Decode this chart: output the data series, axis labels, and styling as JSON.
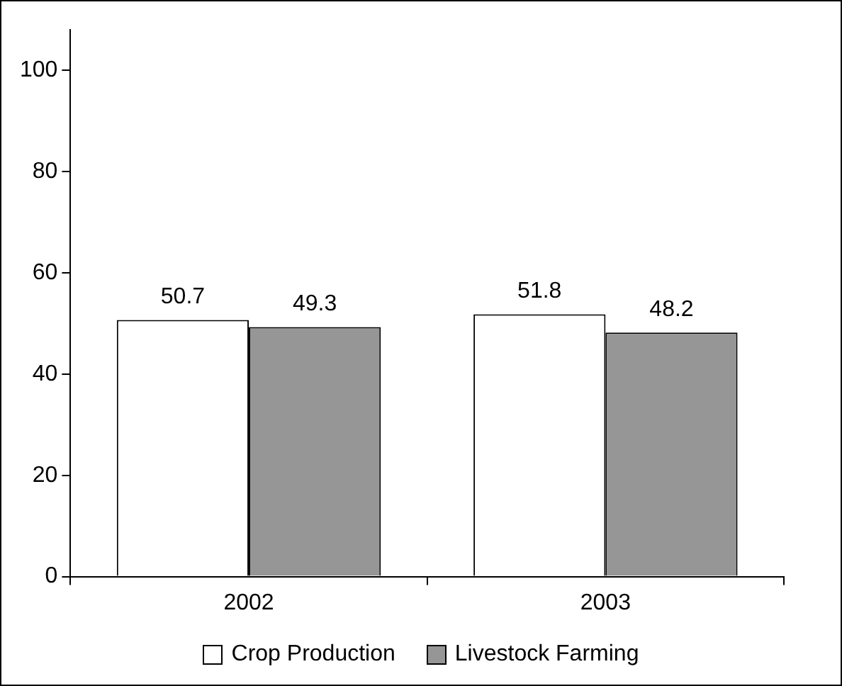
{
  "chart_data": {
    "type": "bar",
    "categories": [
      "2002",
      "2003"
    ],
    "series": [
      {
        "name": "Crop Production",
        "color": "#ffffff",
        "values": [
          50.7,
          51.8
        ]
      },
      {
        "name": "Livestock Farming",
        "color": "#969696",
        "values": [
          49.3,
          48.2
        ]
      }
    ],
    "ylim": [
      0,
      108
    ],
    "yticks": [
      0,
      20,
      40,
      60,
      80,
      100
    ],
    "data_labels": true,
    "legend": "bottom"
  }
}
